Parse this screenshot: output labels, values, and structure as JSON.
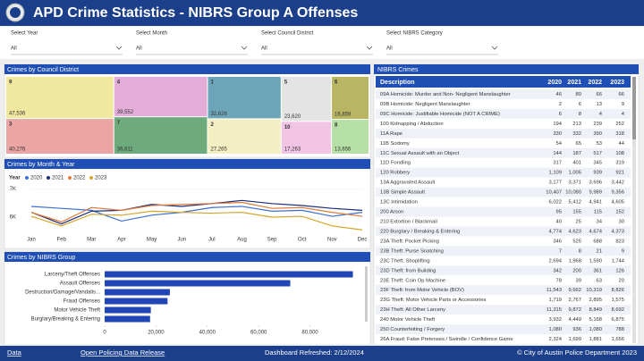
{
  "header": {
    "title": "APD Crime Statistics - NIBRS Group A Offenses"
  },
  "filters": [
    {
      "label": "Select Year",
      "value": "All"
    },
    {
      "label": "Select Month",
      "value": "All"
    },
    {
      "label": "Select Council District",
      "value": "All"
    },
    {
      "label": "Select NIBRS Category",
      "value": "All"
    }
  ],
  "chart_data": [
    {
      "type": "treemap",
      "title": "Crimes by Council District",
      "categories": [
        "9",
        "4",
        "1",
        "5",
        "6",
        "3",
        "7",
        "2",
        "10",
        "8"
      ],
      "values": [
        47536,
        39552,
        32626,
        23620,
        16859,
        40276,
        36611,
        27265,
        17263,
        13656
      ],
      "value_labels": [
        "47,536",
        "39,552",
        "32,626",
        "23,620",
        "16,859",
        "40,276",
        "36,611",
        "27,265",
        "17,263",
        "13,656"
      ],
      "colors": [
        "#f1e8a0",
        "#e3acd9",
        "#6da5b8",
        "#e4e4e4",
        "#b9b663",
        "#eba5a3",
        "#6dab7c",
        "#f4efc3",
        "#f2c4e4",
        "#b6e0a6"
      ]
    },
    {
      "type": "line",
      "title": "Crimes by Month & Year",
      "legend_title": "Year",
      "categories": [
        "Jan",
        "Feb",
        "Mar",
        "Apr",
        "May",
        "Jun",
        "Jul",
        "Aug",
        "Sep",
        "Oct",
        "Nov",
        "Dec"
      ],
      "series": [
        {
          "name": "2020",
          "color": "#3b6fd1",
          "values": [
            6380,
            6310,
            6240,
            5860,
            6070,
            6170,
            6340,
            6380,
            6210,
            6240,
            6030,
            6170
          ]
        },
        {
          "name": "2021",
          "color": "#1c2d7a",
          "values": [
            6170,
            5760,
            6210,
            6240,
            6450,
            6380,
            6480,
            6590,
            6480,
            6410,
            6310,
            6240
          ]
        },
        {
          "name": "2022",
          "color": "#e07b39",
          "values": [
            6170,
            5830,
            6340,
            6240,
            6410,
            6450,
            6480,
            6520,
            6310,
            6340,
            6170,
            6030
          ]
        },
        {
          "name": "2023",
          "color": "#d4a72c",
          "values": [
            6030,
            5690,
            6100,
            6070,
            6210,
            6170,
            6140,
            6170,
            6000,
            6030,
            5690,
            5550
          ]
        }
      ],
      "ylim": [
        5400,
        7200
      ],
      "yticks": [
        {
          "value": 7000,
          "label": "7K"
        },
        {
          "value": 6000,
          "label": "6K"
        }
      ],
      "grid": true
    },
    {
      "type": "hbar",
      "title": "Crimes by NIBRS Group",
      "categories": [
        "Larceny/Theft Offenses",
        "Assault Offenses",
        "Destruction/Damage/Vandalis...",
        "Fraud Offenses",
        "Motor Vehicle Theft",
        "Burglary/Breaking & Entering"
      ],
      "values": [
        96700,
        72300,
        25400,
        24500,
        18000,
        17700
      ],
      "color": "#1f46b4",
      "xlim": [
        0,
        100000
      ],
      "xticks": [
        0,
        {
          "value": 20000,
          "label": "20,000"
        },
        {
          "value": 40000,
          "label": "40,000"
        },
        {
          "value": 60000,
          "label": "60,000"
        },
        {
          "value": 80000,
          "label": "80,000"
        }
      ]
    }
  ],
  "table": {
    "title": "NIBRS Crimes",
    "columns": [
      "Description",
      "2020",
      "2021",
      "2022",
      "2023"
    ],
    "rows": [
      [
        "09A Homicide: Murder and Non- Negligent Manslaughter",
        "46",
        "80",
        "66",
        "66"
      ],
      [
        "09B Homicide: Negligent Manslaughter",
        "2",
        "6",
        "13",
        "9"
      ],
      [
        "09C Homicide: Justifiable Homicide (NOT A CRIME)",
        "6",
        "8",
        "4",
        "4"
      ],
      [
        "100 Kidnapping / Abduction",
        "194",
        "213",
        "239",
        "252"
      ],
      [
        "11A Rape",
        "330",
        "332",
        "390",
        "318"
      ],
      [
        "11B Sodomy",
        "54",
        "65",
        "53",
        "44"
      ],
      [
        "11C Sexual Assault with an Object",
        "144",
        "187",
        "517",
        "108"
      ],
      [
        "11D Fondling",
        "317",
        "401",
        "345",
        "319"
      ],
      [
        "120 Robbery",
        "1,109",
        "1,005",
        "939",
        "921"
      ],
      [
        "13A Aggravated Assault",
        "3,177",
        "3,371",
        "3,696",
        "3,442"
      ],
      [
        "13B Simple Assault",
        "10,407",
        "10,080",
        "9,989",
        "9,356"
      ],
      [
        "13C Intimidation",
        "6,022",
        "5,412",
        "4,941",
        "4,605"
      ],
      [
        "200 Arson",
        "95",
        "155",
        "115",
        "152"
      ],
      [
        "210 Extortion / Blackmail",
        "40",
        "25",
        "34",
        "30"
      ],
      [
        "220 Burglary / Breaking & Entering",
        "4,774",
        "4,623",
        "4,674",
        "4,373"
      ],
      [
        "23A Theft: Pocket Picking",
        "346",
        "525",
        "688",
        "823"
      ],
      [
        "23B Theft: Purse Snatching",
        "7",
        "8",
        "21",
        "9"
      ],
      [
        "23C Theft: Shoplifting",
        "2,694",
        "1,968",
        "1,590",
        "1,744"
      ],
      [
        "23D Theft: from Building",
        "342",
        "200",
        "361",
        "126"
      ],
      [
        "23E Theft: Coin Op Machine",
        "78",
        "39",
        "63",
        "20"
      ],
      [
        "23F Theft: from Motor Vehicle (BOV)",
        "11,543",
        "9,662",
        "10,319",
        "8,826"
      ],
      [
        "23G Theft: Motor Vehicle Parts or Accessories",
        "1,719",
        "2,767",
        "2,895",
        "1,575"
      ],
      [
        "23H Theft: All Other Larceny",
        "11,315",
        "9,872",
        "8,849",
        "8,692"
      ],
      [
        "240 Motor Vehicle Theft",
        "3,932",
        "4,449",
        "5,168",
        "6,875"
      ],
      [
        "250 Counterfeiting / Forgery",
        "1,080",
        "936",
        "1,080",
        "788"
      ],
      [
        "26A Fraud: False Pretenses / Swindle / Confidence Game",
        "2,324",
        "1,699",
        "1,881",
        "1,656"
      ]
    ]
  },
  "footer": {
    "links": [
      "Data",
      "Open Policing Data Release"
    ],
    "refreshed": "Dashboard Refreshed: 2/12/2024",
    "copyright": "© City of Austin Police Department 2023"
  }
}
